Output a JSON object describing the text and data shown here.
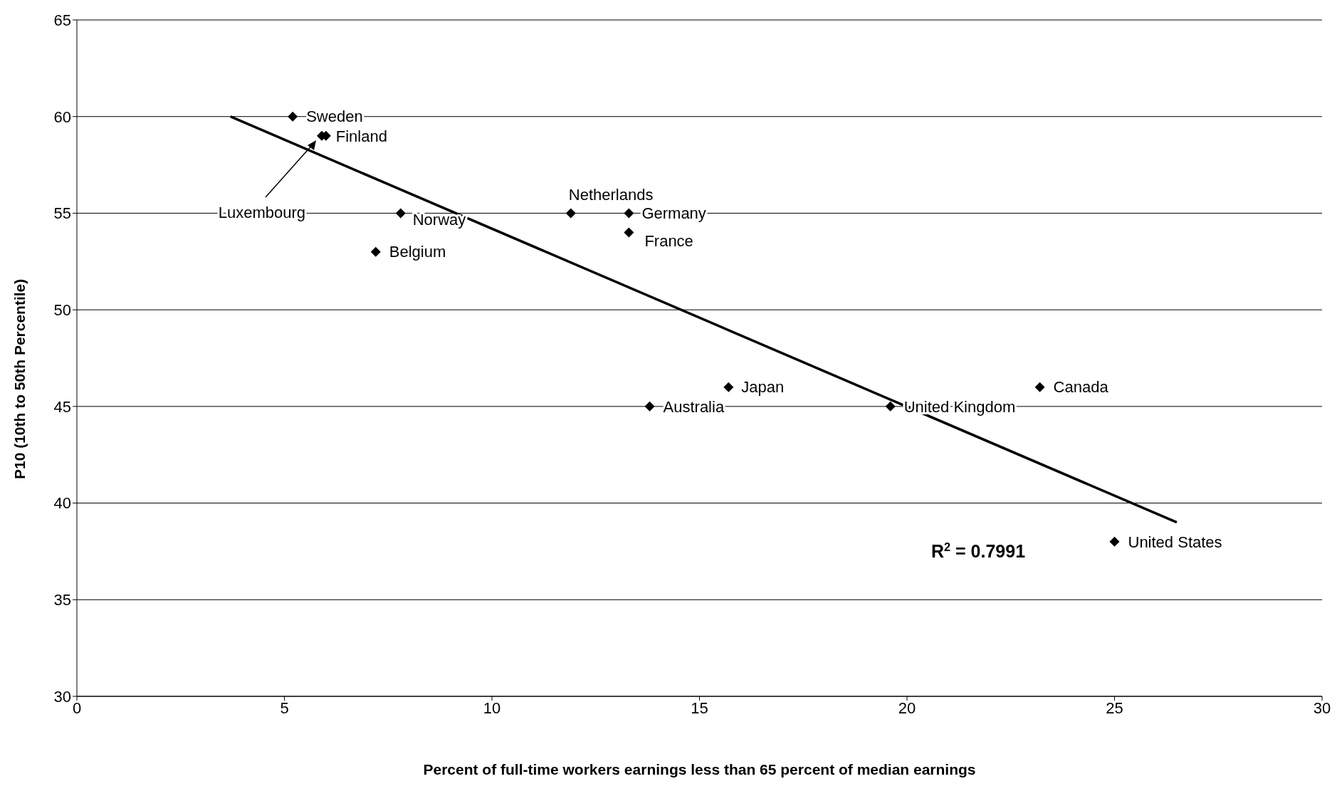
{
  "chart_data": {
    "type": "scatter",
    "xlabel": "Percent of full-time workers earnings less than 65 percent of median earnings",
    "ylabel": "P10 (10th to 50th Percentile)",
    "xlim": [
      0,
      30
    ],
    "xticks": [
      0,
      5,
      10,
      15,
      20,
      25,
      30
    ],
    "ylim": [
      30,
      65
    ],
    "yticks": [
      30,
      35,
      40,
      45,
      50,
      55,
      60,
      65
    ],
    "grid": "y",
    "legend": false,
    "marker": "diamond",
    "series": [
      {
        "color": "#000000",
        "x": [
          5.2,
          5.9,
          6.0,
          7.8,
          7.2,
          11.9,
          13.3,
          13.3,
          15.7,
          13.8,
          19.6,
          23.2,
          25.0
        ],
        "values": [
          60,
          59,
          59,
          55,
          53,
          55,
          55,
          54,
          46,
          45,
          45,
          46,
          38
        ]
      },
      {
        "type": "line",
        "color": "#000000",
        "x": [
          3.7,
          26.5
        ],
        "values": [
          60.0,
          39.0
        ],
        "marker": "none",
        "line_style": "solid"
      }
    ],
    "annotations": [
      {
        "text": "Sweden",
        "x": 5.2,
        "y": 60
      },
      "Luxembourg",
      {
        "text": "Finland",
        "x": 6.0,
        "y": 59
      },
      {
        "text": "Norway",
        "x": 7.8,
        "y": 55
      },
      {
        "text": "Belgium",
        "x": 7.2,
        "y": 53
      },
      {
        "text": "Netherlands",
        "x": 11.9,
        "y": 55
      },
      {
        "text": "Germany",
        "x": 13.3,
        "y": 55
      },
      {
        "text": "France",
        "x": 13.3,
        "y": 54
      },
      {
        "text": "Japan",
        "x": 15.7,
        "y": 46
      },
      {
        "text": "Australia",
        "x": 13.8,
        "y": 45
      },
      {
        "text": "United Kingdom",
        "x": 19.6,
        "y": 45
      },
      {
        "text": "Canada",
        "x": 23.2,
        "y": 46
      },
      {
        "text": "United States",
        "x": 25.0,
        "y": 38
      },
      "R$^{2}$ = 0.7991"
    ]
  }
}
